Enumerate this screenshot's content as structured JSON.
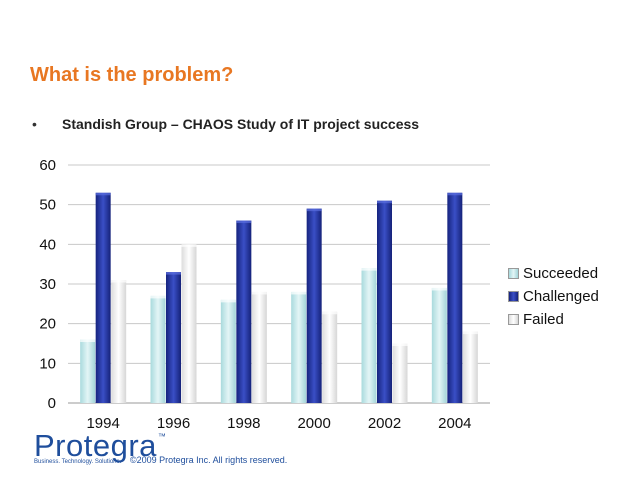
{
  "slide": {
    "title": "What is the problem?",
    "bullet_marker": "•",
    "bullet_text": "Standish Group – CHAOS Study of IT project success"
  },
  "footer": {
    "logo_text": "Protegra",
    "logo_tm": "™",
    "tagline": "Business. Technology. Solutions.",
    "copyright": "©2009 Protegra Inc. All rights reserved."
  },
  "colors": {
    "title": "#e87722",
    "succeeded": "#b7e3e6",
    "challenged": "#1f2f9e",
    "failed": "#f0f0f0"
  },
  "chart_data": {
    "type": "bar",
    "title": "",
    "xlabel": "",
    "ylabel": "",
    "categories": [
      "1994",
      "1996",
      "1998",
      "2000",
      "2002",
      "2004"
    ],
    "series": [
      {
        "name": "Succeeded",
        "values": [
          16,
          27,
          26,
          28,
          34,
          29
        ]
      },
      {
        "name": "Challenged",
        "values": [
          53,
          33,
          46,
          49,
          51,
          53
        ]
      },
      {
        "name": "Failed",
        "values": [
          31,
          40,
          28,
          23,
          15,
          18
        ]
      }
    ],
    "ylim": [
      0,
      60
    ],
    "yticks": [
      "0",
      "10",
      "20",
      "30",
      "40",
      "50",
      "60"
    ],
    "grid": true,
    "legend": "right"
  }
}
